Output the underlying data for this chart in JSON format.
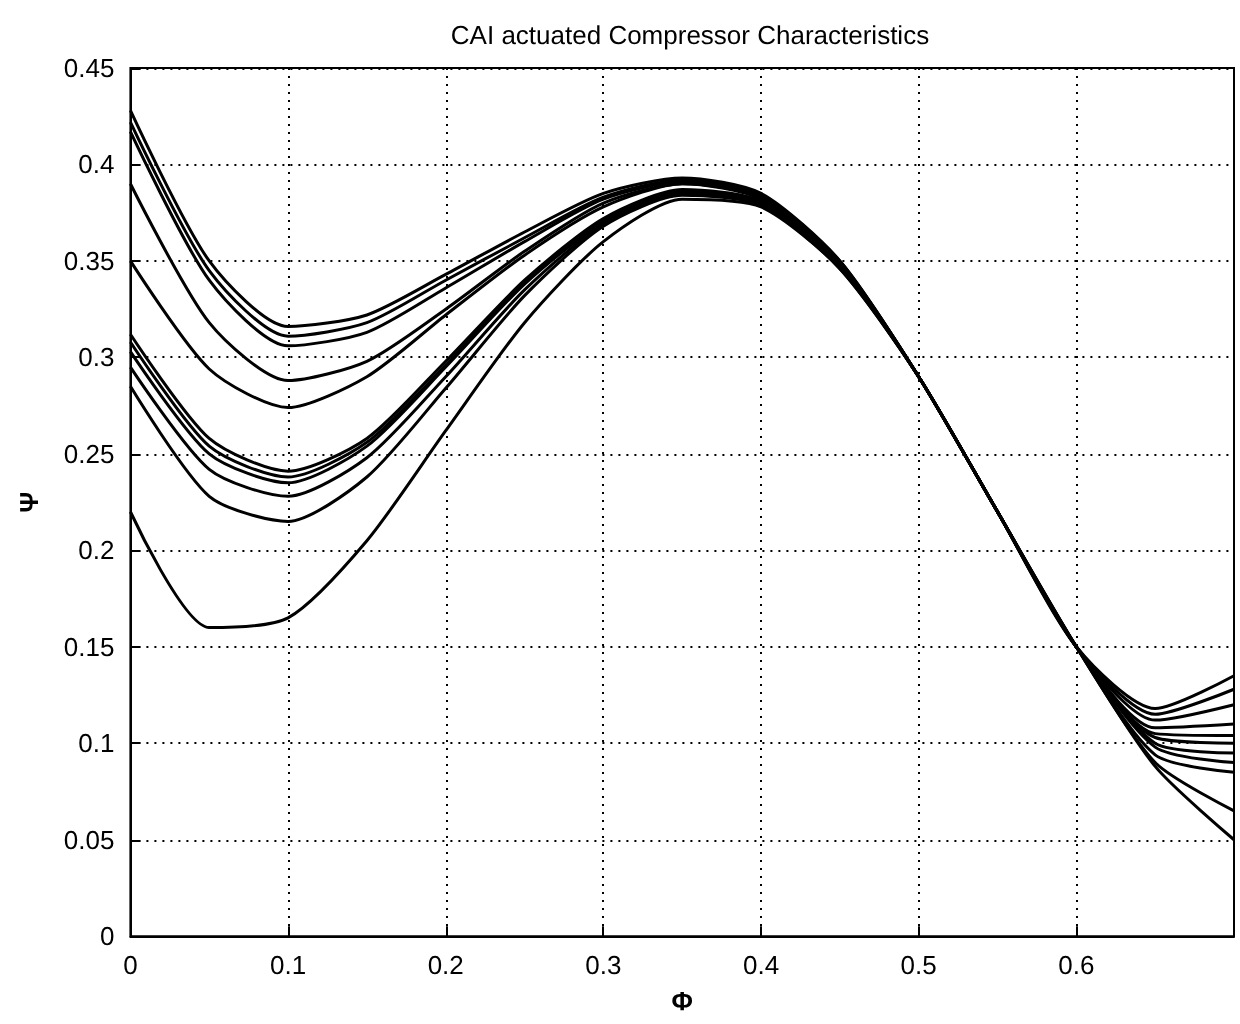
{
  "chart_data": {
    "type": "line",
    "title": "CAI actuated Compressor Characteristics",
    "xlabel": "Φ",
    "ylabel": "Ψ",
    "x": [
      0,
      0.05,
      0.1,
      0.15,
      0.2,
      0.25,
      0.3,
      0.35,
      0.4,
      0.45,
      0.5,
      0.55,
      0.6,
      0.65,
      0.7
    ],
    "xlim": [
      0,
      0.7
    ],
    "xticks": [
      0,
      0.1,
      0.2,
      0.3,
      0.4,
      0.5,
      0.6
    ],
    "ylim": [
      0,
      0.45
    ],
    "yticks": [
      0,
      0.05,
      0.1,
      0.15,
      0.2,
      0.25,
      0.3,
      0.35,
      0.4,
      0.45
    ],
    "grid": true,
    "marker": "none",
    "line_style": "solid",
    "series": [
      {
        "color": "#000000",
        "values": [
          0.428,
          0.35,
          0.316,
          0.322,
          0.343,
          0.365,
          0.385,
          0.393,
          0.385,
          0.35,
          0.29,
          0.22,
          0.15,
          0.118,
          0.135
        ]
      },
      {
        "color": "#000000",
        "values": [
          0.422,
          0.345,
          0.311,
          0.318,
          0.34,
          0.362,
          0.383,
          0.392,
          0.384,
          0.35,
          0.29,
          0.22,
          0.15,
          0.115,
          0.128
        ]
      },
      {
        "color": "#000000",
        "values": [
          0.417,
          0.34,
          0.306,
          0.313,
          0.336,
          0.36,
          0.382,
          0.391,
          0.383,
          0.349,
          0.29,
          0.22,
          0.15,
          0.112,
          0.12
        ]
      },
      {
        "color": "#000000",
        "values": [
          0.39,
          0.318,
          0.288,
          0.298,
          0.325,
          0.355,
          0.38,
          0.39,
          0.382,
          0.348,
          0.29,
          0.22,
          0.15,
          0.108,
          0.11
        ]
      },
      {
        "color": "#000000",
        "values": [
          0.35,
          0.294,
          0.274,
          0.29,
          0.322,
          0.353,
          0.378,
          0.39,
          0.383,
          0.349,
          0.29,
          0.22,
          0.15,
          0.105,
          0.104
        ]
      },
      {
        "color": "#000000",
        "values": [
          0.312,
          0.258,
          0.241,
          0.258,
          0.298,
          0.34,
          0.372,
          0.387,
          0.381,
          0.348,
          0.29,
          0.22,
          0.15,
          0.103,
          0.1
        ]
      },
      {
        "color": "#000000",
        "values": [
          0.308,
          0.254,
          0.238,
          0.256,
          0.296,
          0.339,
          0.371,
          0.386,
          0.38,
          0.347,
          0.29,
          0.22,
          0.15,
          0.1,
          0.095
        ]
      },
      {
        "color": "#000000",
        "values": [
          0.303,
          0.25,
          0.235,
          0.254,
          0.295,
          0.338,
          0.37,
          0.385,
          0.379,
          0.347,
          0.29,
          0.22,
          0.15,
          0.098,
          0.09
        ]
      },
      {
        "color": "#000000",
        "values": [
          0.295,
          0.242,
          0.228,
          0.248,
          0.29,
          0.335,
          0.369,
          0.385,
          0.38,
          0.347,
          0.29,
          0.22,
          0.15,
          0.094,
          0.085
        ]
      },
      {
        "color": "#000000",
        "values": [
          0.285,
          0.228,
          0.215,
          0.238,
          0.284,
          0.332,
          0.368,
          0.384,
          0.379,
          0.346,
          0.29,
          0.22,
          0.15,
          0.09,
          0.065
        ]
      },
      {
        "color": "#000000",
        "values": [
          0.22,
          0.16,
          0.165,
          0.205,
          0.262,
          0.318,
          0.36,
          0.382,
          0.378,
          0.346,
          0.29,
          0.22,
          0.15,
          0.088,
          0.05
        ]
      }
    ]
  }
}
